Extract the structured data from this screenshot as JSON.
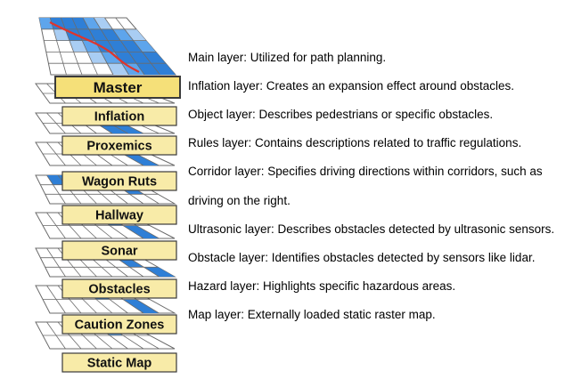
{
  "layers": [
    {
      "label": "Master",
      "color": "#f5e079"
    },
    {
      "label": "Inflation",
      "color": "#f8eba8"
    },
    {
      "label": "Proxemics",
      "color": "#f8eba8"
    },
    {
      "label": "Wagon Ruts",
      "color": "#f8eba8"
    },
    {
      "label": "Hallway",
      "color": "#f8eba8"
    },
    {
      "label": "Sonar",
      "color": "#f8eba8"
    },
    {
      "label": "Obstacles",
      "color": "#f8eba8"
    },
    {
      "label": "Caution Zones",
      "color": "#f8eba8"
    },
    {
      "label": "Static Map",
      "color": "#f8eba8"
    }
  ],
  "descriptions": [
    "Main layer: Utilized for path planning.",
    "Inflation layer: Creates an expansion effect around obstacles.",
    "Object layer: Describes pedestrians or specific obstacles.",
    "Rules layer: Contains descriptions related to traffic regulations.",
    "Corridor layer: Specifies driving directions within corridors, such as",
    "driving on the right.",
    "Ultrasonic layer: Describes obstacles detected by ultrasonic sensors.",
    "Obstacle layer: Identifies obstacles detected by sensors like lidar.",
    "Hazard layer: Highlights specific hazardous areas.",
    "Map layer: Externally loaded static raster map."
  ],
  "colors": {
    "grid_line": "#6b6b6b",
    "blue_dark": "#2f7fd6",
    "blue_mid": "#5ea5ec",
    "blue_light": "#a9cdf3",
    "path": "#e0342b",
    "label_border": "#3a3a3a"
  }
}
